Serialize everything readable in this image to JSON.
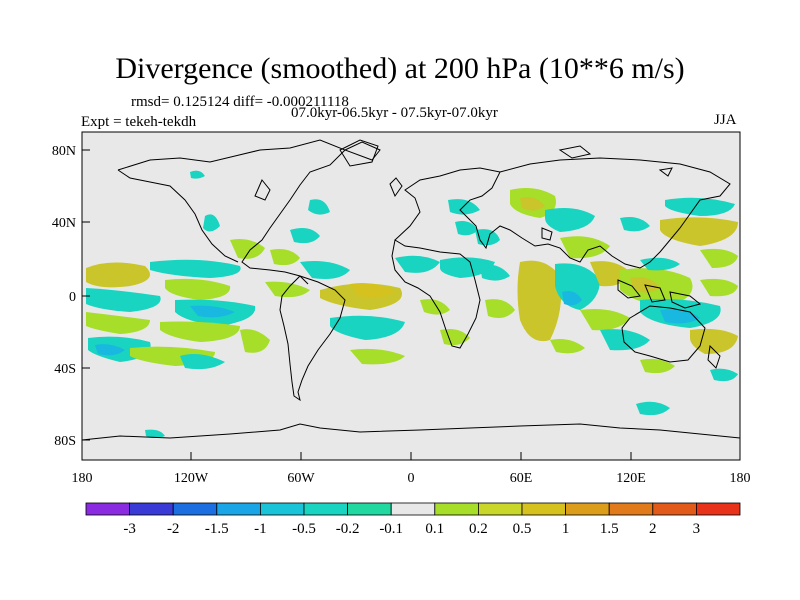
{
  "title": "Divergence (smoothed) at 200 hPa (10**6 m/s)",
  "stats": "rmsd= 0.125124 diff= -0.000211118",
  "period": "07.0kyr-06.5kyr - 07.5kyr-07.0kyr",
  "experiment": "Expt = tekeh-tekdh",
  "season": "JJA",
  "lat_labels": [
    "80N",
    "40N",
    "0",
    "40S",
    "80S"
  ],
  "lon_labels": [
    "180",
    "120W",
    "60W",
    "0",
    "60E",
    "120E",
    "180"
  ],
  "colorbar": {
    "colors": [
      "#8a2be2",
      "#3a3ad6",
      "#1c6fe0",
      "#1aa6e6",
      "#19c3d8",
      "#19d4c0",
      "#20d8a0",
      "#e8e8e8",
      "#a6de2a",
      "#c9d62a",
      "#d6c21f",
      "#dc9d1a",
      "#e07a1a",
      "#e25a1a",
      "#e8321a"
    ],
    "labels": [
      "-3",
      "-2",
      "-1.5",
      "-1",
      "-0.5",
      "-0.2",
      "-0.1",
      "0.1",
      "0.2",
      "0.5",
      "1",
      "1.5",
      "2",
      "3"
    ]
  },
  "colors": {
    "land_ocean": "#e8e8e8",
    "positive": "#a6de2a",
    "positive_strong": "#c9c52a",
    "negative": "#19d4c0",
    "negative_strong": "#19b8e0"
  }
}
